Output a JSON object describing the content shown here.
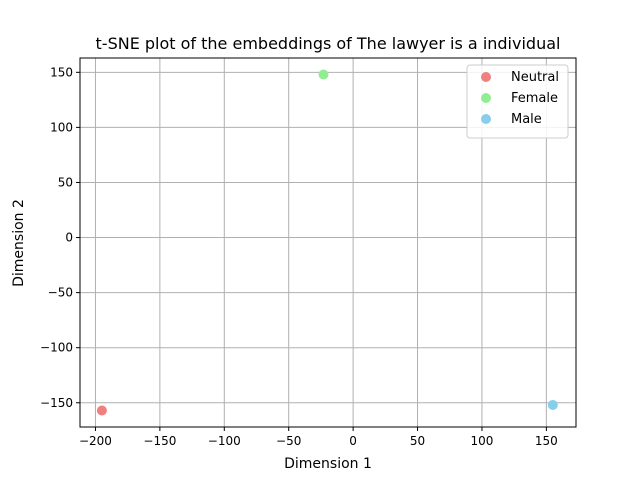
{
  "chart_data": {
    "type": "scatter",
    "title": "t-SNE plot of the embeddings of The lawyer is a individual",
    "xlabel": "Dimension 1",
    "ylabel": "Dimension 2",
    "xlim": [
      -212,
      173
    ],
    "ylim": [
      -172,
      163
    ],
    "xticks": [
      -200,
      -150,
      -100,
      -50,
      0,
      50,
      100,
      150
    ],
    "yticks": [
      -150,
      -100,
      -50,
      0,
      50,
      100,
      150
    ],
    "xtick_labels": [
      "−200",
      "−150",
      "−100",
      "−50",
      "0",
      "50",
      "100",
      "150"
    ],
    "ytick_labels": [
      "−150",
      "−100",
      "−50",
      "0",
      "50",
      "100",
      "150"
    ],
    "grid": true,
    "legend_position": "top-right",
    "series": [
      {
        "name": "Neutral",
        "color": "#f08080",
        "points": [
          {
            "x": -195,
            "y": -157
          }
        ]
      },
      {
        "name": "Female",
        "color": "#90ee90",
        "points": [
          {
            "x": -23,
            "y": 148
          }
        ]
      },
      {
        "name": "Male",
        "color": "#87ceeb",
        "points": [
          {
            "x": 155,
            "y": -152
          }
        ]
      }
    ]
  }
}
